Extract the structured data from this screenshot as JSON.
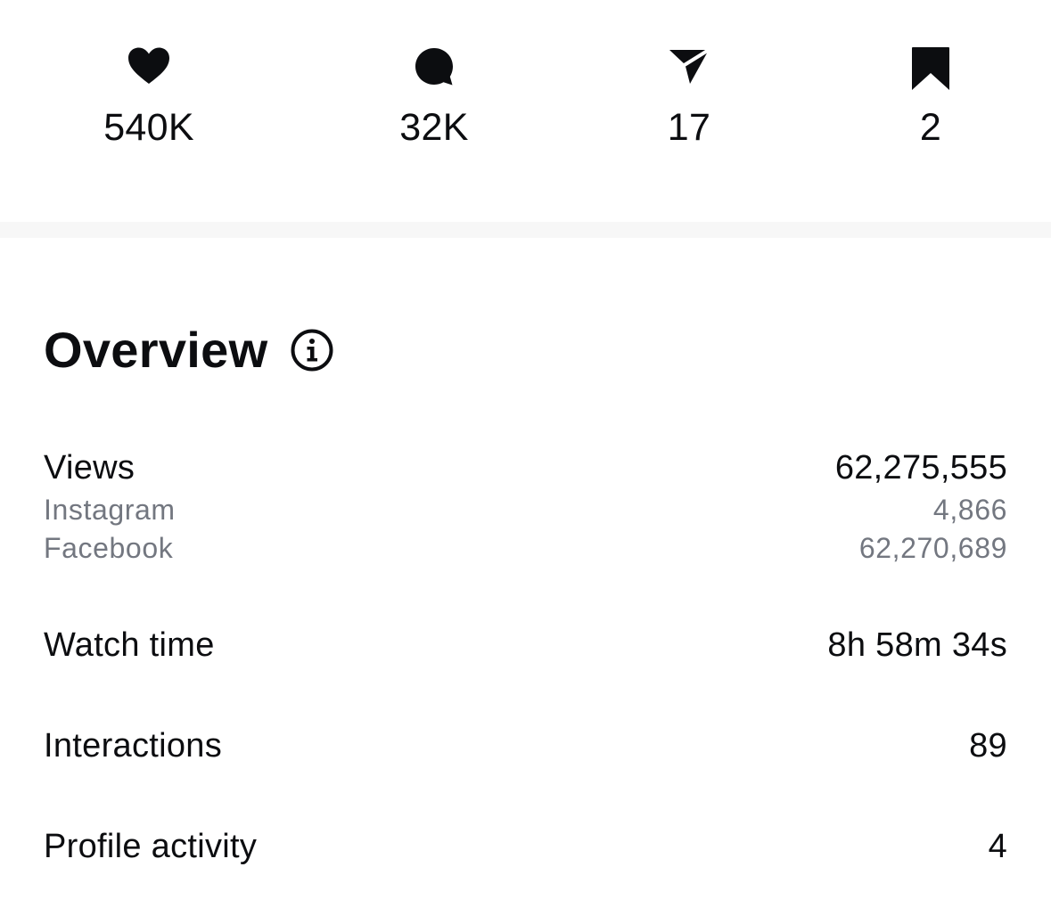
{
  "stats": [
    {
      "icon": "heart-icon",
      "count": "540K"
    },
    {
      "icon": "comment-icon",
      "count": "32K"
    },
    {
      "icon": "share-icon",
      "count": "17"
    },
    {
      "icon": "bookmark-icon",
      "count": "2"
    }
  ],
  "overview": {
    "title": "Overview",
    "info_icon": "info-icon"
  },
  "metrics": {
    "views": {
      "label": "Views",
      "value": "62,275,555"
    },
    "instagram": {
      "label": "Instagram",
      "value": "4,866"
    },
    "facebook": {
      "label": "Facebook",
      "value": "62,270,689"
    },
    "watch_time": {
      "label": "Watch time",
      "value": "8h 58m 34s"
    },
    "interactions": {
      "label": "Interactions",
      "value": "89"
    },
    "profile_activity": {
      "label": "Profile activity",
      "value": "4"
    }
  },
  "colors": {
    "text_primary": "#0c0d10",
    "text_secondary": "#737780",
    "divider": "#f7f7f7",
    "background": "#ffffff"
  }
}
